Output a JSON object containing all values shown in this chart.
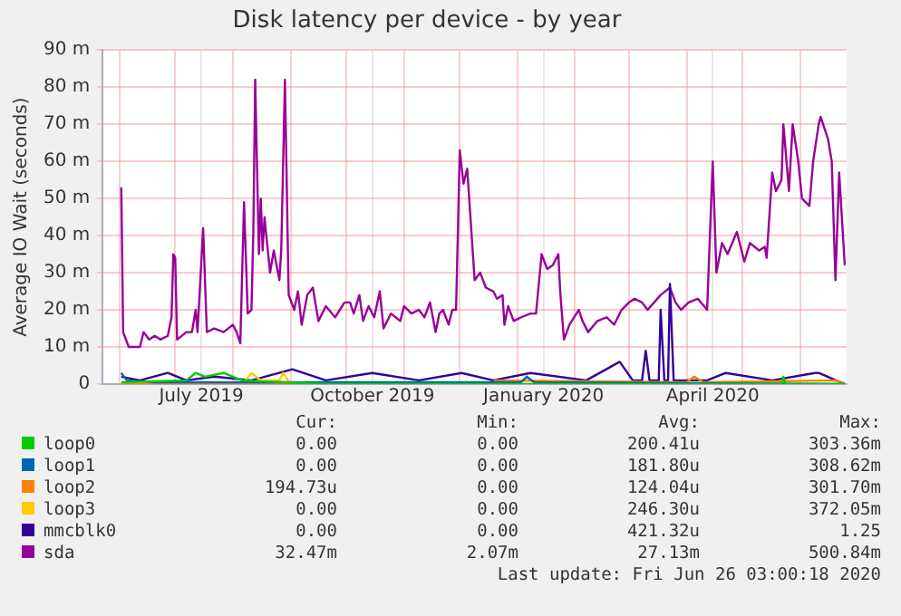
{
  "chart_data": {
    "type": "line",
    "title": "Disk latency per device - by year",
    "ylabel": "Average IO Wait (seconds)",
    "xlim": [
      "2019-05-23",
      "2020-06-26"
    ],
    "xticks": [
      {
        "value": "2019-06-01",
        "label": null
      },
      {
        "value": "2019-07-01",
        "label": null
      },
      {
        "value": "2019-07-15",
        "label": "July 2019"
      },
      {
        "value": "2019-08-01",
        "label": null
      },
      {
        "value": "2019-09-01",
        "label": null
      },
      {
        "value": "2019-10-01",
        "label": null
      },
      {
        "value": "2019-10-15",
        "label": "October 2019"
      },
      {
        "value": "2019-11-01",
        "label": null
      },
      {
        "value": "2019-12-01",
        "label": null
      },
      {
        "value": "2020-01-01",
        "label": null
      },
      {
        "value": "2020-01-15",
        "label": "January 2020"
      },
      {
        "value": "2020-02-01",
        "label": null
      },
      {
        "value": "2020-03-01",
        "label": null
      },
      {
        "value": "2020-04-01",
        "label": null
      },
      {
        "value": "2020-04-15",
        "label": "April 2020"
      },
      {
        "value": "2020-05-01",
        "label": null
      },
      {
        "value": "2020-06-01",
        "label": null
      }
    ],
    "ylim": [
      0,
      90
    ],
    "yticks": [
      0,
      {
        "value": 10,
        "label": "10 m"
      },
      {
        "value": 20,
        "label": "20 m"
      },
      {
        "value": 30,
        "label": "30 m"
      },
      {
        "value": 40,
        "label": "40 m"
      },
      {
        "value": 50,
        "label": "50 m"
      },
      {
        "value": 60,
        "label": "60 m"
      },
      {
        "value": 70,
        "label": "70 m"
      },
      {
        "value": 80,
        "label": "80 m"
      },
      {
        "value": 90,
        "label": "90 m"
      }
    ],
    "grid": true,
    "legend": "bottom",
    "marker": "none",
    "line_style": "solid",
    "series": [
      {
        "name": "loop0",
        "color": "#00cc00",
        "x": [
          "2019-06-02",
          "2019-07-07",
          "2019-07-12",
          "2019-07-17",
          "2019-07-27",
          "2019-08-01",
          "2019-08-06",
          "2019-09-20",
          "2020-05-22",
          "2020-05-23",
          "2020-05-24",
          "2020-06-25"
        ],
        "values": [
          0.5,
          1,
          3,
          2,
          3,
          2,
          1,
          0,
          0,
          2,
          0,
          0
        ]
      },
      {
        "name": "loop1",
        "color": "#0066b3",
        "x": [
          "2019-06-02",
          "2019-06-05",
          "2019-06-20",
          "2019-08-20",
          "2020-01-03",
          "2020-01-06",
          "2020-01-10",
          "2020-06-25"
        ],
        "values": [
          3,
          1,
          0.5,
          0.5,
          0.5,
          2,
          0.5,
          0
        ]
      },
      {
        "name": "loop2",
        "color": "#ff8000",
        "x": [
          "2019-06-02",
          "2019-09-20",
          "2019-12-19",
          "2019-12-20",
          "2020-04-01",
          "2020-04-05",
          "2020-04-10",
          "2020-06-20",
          "2020-06-25"
        ],
        "values": [
          0,
          0,
          0,
          1,
          0.5,
          2,
          0.5,
          1,
          0.2
        ]
      },
      {
        "name": "loop3",
        "color": "#ffcc00",
        "x": [
          "2019-08-06",
          "2019-08-11",
          "2019-08-16",
          "2019-08-26",
          "2019-08-28",
          "2019-09-01"
        ],
        "values": [
          0,
          3,
          1,
          1,
          3,
          0
        ]
      },
      {
        "name": "mmcblk0",
        "color": "#330099",
        "x": [
          "2019-06-02",
          "2019-06-12",
          "2019-06-27",
          "2019-07-07",
          "2019-07-22",
          "2019-08-11",
          "2019-09-02",
          "2019-09-20",
          "2019-10-15",
          "2019-11-09",
          "2019-12-02",
          "2019-12-19",
          "2020-01-08",
          "2020-02-07",
          "2020-02-25",
          "2020-03-03",
          "2020-03-08",
          "2020-03-10",
          "2020-03-12",
          "2020-03-17",
          "2020-03-18",
          "2020-03-20",
          "2020-03-22",
          "2020-03-23",
          "2020-03-25",
          "2020-04-12",
          "2020-04-22",
          "2020-05-17",
          "2020-06-09",
          "2020-06-11",
          "2020-06-25"
        ],
        "values": [
          2,
          1,
          3,
          1,
          2,
          1,
          4,
          1,
          3,
          1,
          3,
          1,
          3,
          1,
          6,
          1,
          1,
          9,
          1,
          1,
          20,
          1,
          1,
          27,
          1,
          1,
          3,
          1,
          3,
          3,
          0
        ]
      },
      {
        "name": "sda",
        "color": "#990099",
        "x": [
          "2019-06-02",
          "2019-06-03",
          "2019-06-06",
          "2019-06-12",
          "2019-06-14",
          "2019-06-17",
          "2019-06-20",
          "2019-06-23",
          "2019-06-27",
          "2019-06-29",
          "2019-06-30",
          "2019-07-01",
          "2019-07-02",
          "2019-07-07",
          "2019-07-10",
          "2019-07-12",
          "2019-07-13",
          "2019-07-16",
          "2019-07-18",
          "2019-07-22",
          "2019-07-27",
          "2019-08-01",
          "2019-08-03",
          "2019-08-05",
          "2019-08-07",
          "2019-08-09",
          "2019-08-11",
          "2019-08-12",
          "2019-08-13",
          "2019-08-15",
          "2019-08-16",
          "2019-08-17",
          "2019-08-18",
          "2019-08-21",
          "2019-08-23",
          "2019-08-26",
          "2019-08-27",
          "2019-08-29",
          "2019-08-31",
          "2019-09-03",
          "2019-09-05",
          "2019-09-07",
          "2019-09-10",
          "2019-09-13",
          "2019-09-16",
          "2019-09-20",
          "2019-09-25",
          "2019-09-30",
          "2019-10-03",
          "2019-10-05",
          "2019-10-08",
          "2019-10-10",
          "2019-10-13",
          "2019-10-16",
          "2019-10-19",
          "2019-10-21",
          "2019-10-25",
          "2019-10-30",
          "2019-11-01",
          "2019-11-05",
          "2019-11-09",
          "2019-11-12",
          "2019-11-15",
          "2019-11-18",
          "2019-11-20",
          "2019-11-22",
          "2019-11-25",
          "2019-11-27",
          "2019-11-29",
          "2019-12-01",
          "2019-12-03",
          "2019-12-05",
          "2019-12-09",
          "2019-12-12",
          "2019-12-15",
          "2019-12-19",
          "2019-12-21",
          "2019-12-24",
          "2019-12-25",
          "2019-12-27",
          "2019-12-30",
          "2020-01-03",
          "2020-01-08",
          "2020-01-11",
          "2020-01-14",
          "2020-01-17",
          "2020-01-20",
          "2020-01-23",
          "2020-01-24",
          "2020-01-26",
          "2020-01-29",
          "2020-02-03",
          "2020-02-05",
          "2020-02-08",
          "2020-02-13",
          "2020-02-18",
          "2020-02-22",
          "2020-02-26",
          "2020-03-01",
          "2020-03-04",
          "2020-03-08",
          "2020-03-11",
          "2020-03-18",
          "2020-03-23",
          "2020-03-26",
          "2020-03-29",
          "2020-04-02",
          "2020-04-07",
          "2020-04-12",
          "2020-04-15",
          "2020-04-17",
          "2020-04-20",
          "2020-04-23",
          "2020-04-28",
          "2020-05-02",
          "2020-05-05",
          "2020-05-10",
          "2020-05-13",
          "2020-05-14",
          "2020-05-17",
          "2020-05-19",
          "2020-05-22",
          "2020-05-23",
          "2020-05-26",
          "2020-05-28",
          "2020-05-31",
          "2020-06-02",
          "2020-06-06",
          "2020-06-08",
          "2020-06-11",
          "2020-06-12",
          "2020-06-16",
          "2020-06-18",
          "2020-06-20",
          "2020-06-22",
          "2020-06-25"
        ],
        "values": [
          53,
          14,
          10,
          10,
          14,
          12,
          13,
          12,
          13,
          18,
          35,
          34,
          12,
          14,
          14,
          20,
          14,
          42,
          14,
          15,
          14,
          16,
          14,
          11,
          49,
          19,
          20,
          41,
          82,
          35,
          50,
          36,
          45,
          30,
          36,
          28,
          36,
          82,
          24,
          20,
          25,
          16,
          24,
          26,
          17,
          21,
          18,
          22,
          22,
          19,
          24,
          17,
          21,
          18,
          25,
          15,
          19,
          17,
          21,
          19,
          20,
          18,
          22,
          14,
          19,
          20,
          16,
          20,
          20,
          63,
          54,
          58,
          28,
          30,
          26,
          25,
          23,
          24,
          16,
          21,
          17,
          18,
          19,
          19,
          35,
          31,
          32,
          35,
          25,
          12,
          16,
          20,
          17,
          14,
          17,
          18,
          16,
          20,
          22,
          23,
          22,
          20,
          24,
          26,
          22,
          20,
          22,
          23,
          20,
          60,
          30,
          38,
          35,
          41,
          33,
          38,
          36,
          37,
          34,
          57,
          52,
          55,
          70,
          52,
          70,
          60,
          50,
          48,
          60,
          70,
          72,
          66,
          60,
          28,
          57,
          32
        ]
      }
    ],
    "annotations": [
      "Cur:",
      "Min:",
      "Avg:",
      "Max:",
      "0.00",
      "0.00",
      "200.41u",
      "303.36m",
      "0.00",
      "0.00",
      "181.80u",
      "308.62m",
      "194.73u",
      "0.00",
      "124.04u",
      "301.70m",
      "0.00",
      "0.00",
      "246.30u",
      "372.05m",
      "0.00",
      "0.00",
      "421.32u",
      "1.25",
      "32.47m",
      "2.07m",
      "27.13m",
      "500.84m",
      "Last update: Fri Jun 26 03:00:18 2020"
    ]
  }
}
